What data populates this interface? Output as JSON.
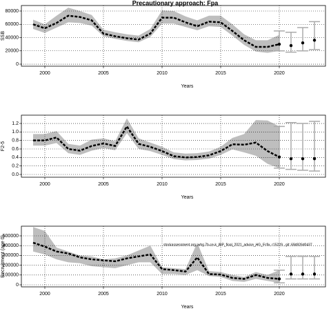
{
  "title": "Precautionary approach: Fpa",
  "chart_data": [
    {
      "type": "line",
      "ylabel": "SSB",
      "xlabel": "Years",
      "xlim": [
        1998.0,
        2023.94
      ],
      "xticks": [
        2000,
        2005,
        2010,
        2015,
        2020
      ],
      "ylim": [
        -3100,
        88300
      ],
      "yticks": [
        0,
        20000,
        40000,
        60000,
        80000
      ],
      "grid": true,
      "band_color": "#bebebe",
      "line_color": "#000000",
      "forecast_color": "#aaaaaa",
      "x": [
        1999,
        2000,
        2001,
        2002,
        2003,
        2004,
        2005,
        2006,
        2007,
        2008,
        2009,
        2010,
        2011,
        2012,
        2013,
        2014,
        2015,
        2016,
        2017,
        2018,
        2019,
        2020
      ],
      "values": [
        60000,
        54000,
        62000,
        73000,
        71000,
        66000,
        46000,
        42000,
        39000,
        37000,
        46000,
        70000,
        70000,
        63000,
        57000,
        64000,
        63000,
        50000,
        36000,
        26000,
        26000,
        30000
      ],
      "upper": [
        67000,
        60000,
        73000,
        85000,
        80000,
        74000,
        52000,
        48000,
        45000,
        43000,
        53000,
        81000,
        80000,
        72000,
        66000,
        73000,
        73000,
        60000,
        45000,
        36000,
        36000,
        44000
      ],
      "lower": [
        53000,
        47000,
        55000,
        63000,
        62000,
        58000,
        42000,
        38000,
        35000,
        33000,
        41000,
        61000,
        61000,
        56000,
        51000,
        57000,
        56000,
        43000,
        29000,
        19000,
        17000,
        20000
      ],
      "forecast": {
        "x": [
          2020,
          2021,
          2022,
          2023
        ],
        "values": [
          30000,
          28000,
          32000,
          36000
        ],
        "lower": [
          20000,
          18000,
          20000,
          22000
        ],
        "upper": [
          50000,
          48000,
          55000,
          64000
        ]
      }
    },
    {
      "type": "line",
      "ylabel": "F2-5",
      "xlabel": "Years",
      "xlim": [
        1998.0,
        2023.94
      ],
      "xticks": [
        2000,
        2005,
        2010,
        2015,
        2020
      ],
      "ylim": [
        -0.065,
        1.395
      ],
      "yticks": [
        {
          "value": 0,
          "label": "0.0"
        },
        0.2,
        0.4,
        0.6,
        0.8,
        {
          "value": 1,
          "label": "1.0"
        },
        1.2
      ],
      "grid": true,
      "band_color": "#bebebe",
      "line_color": "#000000",
      "forecast_color": "#aaaaaa",
      "x": [
        1999,
        2000,
        2001,
        2002,
        2003,
        2004,
        2005,
        2006,
        2007,
        2008,
        2009,
        2010,
        2011,
        2012,
        2013,
        2014,
        2015,
        2016,
        2017,
        2018,
        2019,
        2020
      ],
      "values": [
        0.8,
        0.8,
        0.87,
        0.6,
        0.56,
        0.67,
        0.73,
        0.67,
        1.13,
        0.72,
        0.65,
        0.55,
        0.43,
        0.4,
        0.41,
        0.45,
        0.55,
        0.71,
        0.7,
        0.75,
        0.55,
        0.41
      ],
      "upper": [
        0.95,
        0.95,
        1.02,
        0.72,
        0.68,
        0.82,
        0.85,
        0.78,
        1.32,
        0.85,
        0.75,
        0.65,
        0.52,
        0.49,
        0.5,
        0.54,
        0.65,
        0.86,
        0.95,
        1.28,
        1.27,
        1.13
      ],
      "lower": [
        0.68,
        0.68,
        0.74,
        0.5,
        0.46,
        0.56,
        0.62,
        0.57,
        0.97,
        0.6,
        0.55,
        0.46,
        0.36,
        0.33,
        0.34,
        0.37,
        0.46,
        0.59,
        0.52,
        0.44,
        0.25,
        0.15
      ],
      "forecast": {
        "x": [
          2020,
          2021,
          2022,
          2023
        ],
        "values": [
          0.41,
          0.37,
          0.37,
          0.37
        ],
        "lower": [
          0.15,
          0.12,
          0.1,
          0.08
        ],
        "upper": [
          1.13,
          1.22,
          1.2,
          1.25
        ]
      }
    },
    {
      "type": "line",
      "ylabel": "Recruitment (age 0)",
      "xlabel": "Years",
      "annotation": "stockassessment.org, whg.7b-ce-k_IBP_final_2021_advice_HG_Fcfix, r15229 , git: 69d926d0437",
      "xlim": [
        1998.0,
        2023.94
      ],
      "xticks": [
        2000,
        2005,
        2010,
        2015,
        2020
      ],
      "ylim": [
        -21100,
        598600
      ],
      "yticks": [
        0,
        100000,
        200000,
        300000,
        400000,
        500000
      ],
      "grid": true,
      "band_color": "#bebebe",
      "line_color": "#000000",
      "forecast_color": "#aaaaaa",
      "x": [
        1999,
        2000,
        2001,
        2002,
        2003,
        2004,
        2005,
        2006,
        2007,
        2008,
        2009,
        2010,
        2011,
        2012,
        2013,
        2014,
        2015,
        2016,
        2017,
        2018,
        2019,
        2020
      ],
      "values": [
        430000,
        390000,
        340000,
        320000,
        280000,
        260000,
        250000,
        240000,
        270000,
        290000,
        310000,
        160000,
        150000,
        135000,
        280000,
        110000,
        105000,
        70000,
        60000,
        100000,
        70000,
        60000
      ],
      "upper": [
        590000,
        550000,
        380000,
        340000,
        300000,
        290000,
        260000,
        270000,
        300000,
        350000,
        400000,
        180000,
        170000,
        160000,
        430000,
        140000,
        130000,
        100000,
        80000,
        130000,
        100000,
        150000
      ],
      "lower": [
        340000,
        310000,
        260000,
        230000,
        220000,
        190000,
        180000,
        170000,
        200000,
        230000,
        230000,
        110000,
        110000,
        100000,
        150000,
        90000,
        80000,
        40000,
        30000,
        60000,
        40000,
        20000
      ],
      "forecast": {
        "x": [
          2020,
          2021,
          2022,
          2023
        ],
        "values": [
          60000,
          110000,
          110000,
          110000
        ],
        "lower": [
          20000,
          60000,
          60000,
          60000
        ],
        "upper": [
          150000,
          290000,
          290000,
          290000
        ]
      }
    }
  ]
}
